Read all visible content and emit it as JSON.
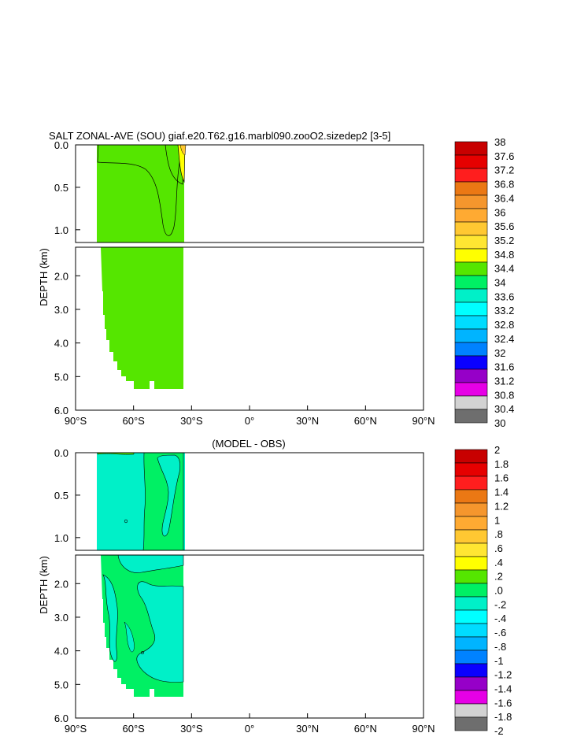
{
  "chart_data": [
    {
      "type": "heatmap",
      "title": "SALT ZONAL-AVE (SOU) giaf.e20.T62.g16.marbl090.zooO2.sizedep2 [3-5]",
      "xlabel": "",
      "ylabel": "DEPTH (km)",
      "x_ticks": [
        "90°S",
        "60°S",
        "30°S",
        "0°",
        "30°N",
        "60°N",
        "90°N"
      ],
      "x_tick_values": [
        -90,
        -60,
        -30,
        0,
        30,
        60,
        90
      ],
      "y_ticks_upper": [
        "0.0",
        "0.5",
        "1.0"
      ],
      "y_ticks_lower": [
        "2.0",
        "3.0",
        "4.0",
        "5.0",
        "6.0"
      ],
      "ylim_upper_km": [
        0,
        1.15
      ],
      "ylim_lower_km": [
        1.15,
        6.0
      ],
      "data_lat_range": [
        -78,
        -34
      ],
      "dominant_value_range": [
        34.4,
        34.8
      ],
      "max_value_region": {
        "lat": [
          -37,
          -34
        ],
        "depth_km": [
          0,
          0.4
        ],
        "value_range": [
          34.8,
          36.4
        ]
      },
      "colorbar_labels": [
        "38",
        "37.6",
        "37.2",
        "36.8",
        "36.4",
        "36",
        "35.6",
        "35.2",
        "34.8",
        "34.4",
        "34",
        "33.6",
        "33.2",
        "32.8",
        "32.4",
        "32",
        "31.6",
        "31.2",
        "30.8",
        "30.4",
        "30"
      ],
      "colorbar_colors": [
        "#c80000",
        "#e60000",
        "#ff1e1e",
        "#eb7814",
        "#f5962d",
        "#ffaa32",
        "#ffc832",
        "#ffe632",
        "#ffff00",
        "#55e600",
        "#00f064",
        "#00f0c8",
        "#00ffff",
        "#00dcff",
        "#00b4ff",
        "#0082ff",
        "#0a00ff",
        "#9600c8",
        "#e600e6",
        "#d2d2d2",
        "#6e6e6e"
      ]
    },
    {
      "type": "heatmap",
      "title": "(MODEL - OBS)",
      "xlabel": "",
      "ylabel": "DEPTH (km)",
      "x_ticks": [
        "90°S",
        "60°S",
        "30°S",
        "0°",
        "30°N",
        "60°N",
        "90°N"
      ],
      "x_tick_values": [
        -90,
        -60,
        -30,
        0,
        30,
        60,
        90
      ],
      "y_ticks_upper": [
        "0.0",
        "0.5",
        "1.0"
      ],
      "y_ticks_lower": [
        "2.0",
        "3.0",
        "4.0",
        "5.0",
        "6.0"
      ],
      "ylim_upper_km": [
        0,
        1.15
      ],
      "ylim_lower_km": [
        1.15,
        6.0
      ],
      "data_lat_range": [
        -78,
        -34
      ],
      "dominant_value_range": [
        -0.2,
        0.4
      ],
      "colorbar_labels": [
        "2",
        "1.8",
        "1.6",
        "1.4",
        "1.2",
        "1",
        ".8",
        ".6",
        ".4",
        ".2",
        ".0",
        "-.2",
        "-.4",
        "-.6",
        "-.8",
        "-1",
        "-1.2",
        "-1.4",
        "-1.6",
        "-1.8",
        "-2"
      ],
      "colorbar_colors": [
        "#c80000",
        "#e60000",
        "#ff1e1e",
        "#eb7814",
        "#f5962d",
        "#ffaa32",
        "#ffc832",
        "#ffe632",
        "#ffff00",
        "#55e600",
        "#00f064",
        "#00f0c8",
        "#00ffff",
        "#00dcff",
        "#00b4ff",
        "#0082ff",
        "#0a00ff",
        "#9600c8",
        "#e600e6",
        "#d2d2d2",
        "#6e6e6e"
      ]
    }
  ]
}
